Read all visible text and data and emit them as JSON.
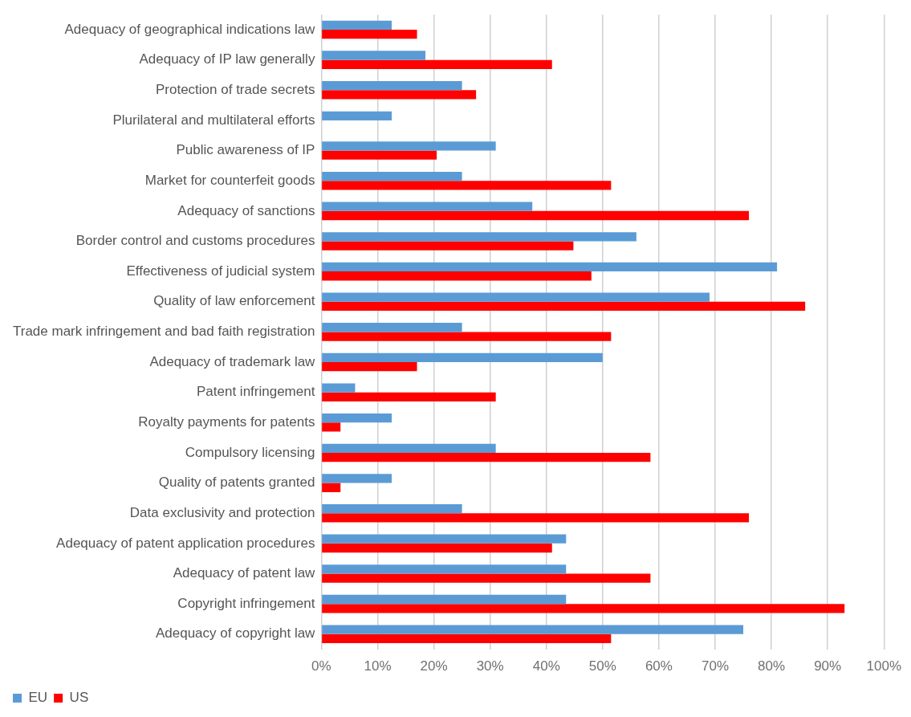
{
  "chart_data": {
    "type": "bar",
    "orientation": "horizontal",
    "categories": [
      "Adequacy of geographical indications law",
      "Adequacy of IP law generally",
      "Protection of trade secrets",
      "Plurilateral and multilateral efforts",
      "Public awareness of IP",
      "Market for counterfeit goods",
      "Adequacy of sanctions",
      "Border control and customs procedures",
      "Effectiveness of judicial system",
      "Quality of law enforcement",
      "Trade mark infringement and bad faith registration",
      "Adequacy of trademark law",
      "Patent infringement",
      "Royalty payments for patents",
      "Compulsory licensing",
      "Quality of patents granted",
      "Data exclusivity and protection",
      "Adequacy of patent application procedures",
      "Adequacy of patent law",
      "Copyright infringement",
      "Adequacy of copyright law"
    ],
    "series": [
      {
        "name": "EU",
        "color": "#5b9bd5",
        "values": [
          12.5,
          18.5,
          25,
          12.5,
          31,
          25,
          37.5,
          56,
          81,
          69,
          25,
          50,
          6,
          12.5,
          31,
          12.5,
          25,
          43.5,
          43.5,
          43.5,
          75
        ]
      },
      {
        "name": "US",
        "color": "#ff0000",
        "values": [
          17,
          41,
          27.5,
          0,
          20.5,
          51.5,
          76,
          44.8,
          48,
          86,
          51.5,
          17,
          31,
          3.4,
          58.5,
          3.4,
          76,
          41,
          58.5,
          93,
          51.5
        ]
      }
    ],
    "xlim": [
      0,
      100
    ],
    "xticks": [
      {
        "value": 0,
        "label": "0%"
      },
      {
        "value": 10,
        "label": "10%"
      },
      {
        "value": 20,
        "label": "20%"
      },
      {
        "value": 30,
        "label": "30%"
      },
      {
        "value": 40,
        "label": "40%"
      },
      {
        "value": 50,
        "label": "50%"
      },
      {
        "value": 60,
        "label": "60%"
      },
      {
        "value": 70,
        "label": "70%"
      },
      {
        "value": 80,
        "label": "80%"
      },
      {
        "value": 90,
        "label": "90%"
      },
      {
        "value": 100,
        "label": "100%"
      }
    ],
    "grid": "x",
    "legend": "bottom left"
  }
}
